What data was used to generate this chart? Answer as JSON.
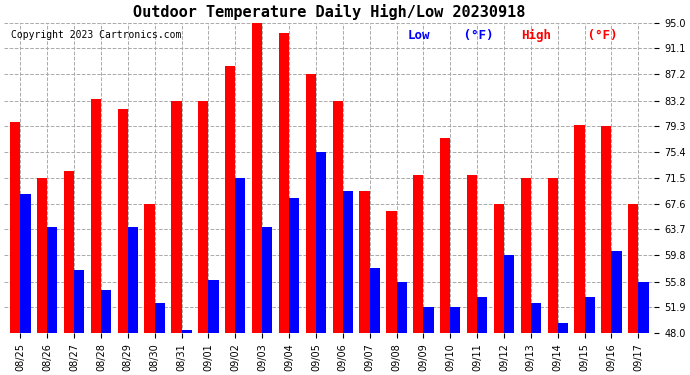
{
  "title": "Outdoor Temperature Daily High/Low 20230918",
  "copyright": "Copyright 2023 Cartronics.com",
  "yticks": [
    48.0,
    51.9,
    55.8,
    59.8,
    63.7,
    67.6,
    71.5,
    75.4,
    79.3,
    83.2,
    87.2,
    91.1,
    95.0
  ],
  "ylim": [
    48.0,
    95.0
  ],
  "bar_width": 0.38,
  "background_color": "#ffffff",
  "grid_color": "#aaaaaa",
  "low_color": "#0000ff",
  "high_color": "#ff0000",
  "dates": [
    "08/25",
    "08/26",
    "08/27",
    "08/28",
    "08/29",
    "08/30",
    "08/31",
    "09/01",
    "09/02",
    "09/03",
    "09/04",
    "09/05",
    "09/06",
    "09/07",
    "09/08",
    "09/09",
    "09/10",
    "09/11",
    "09/12",
    "09/13",
    "09/14",
    "09/15",
    "09/16",
    "09/17"
  ],
  "highs": [
    80.0,
    71.5,
    72.5,
    83.5,
    82.0,
    67.5,
    83.2,
    83.2,
    88.5,
    95.0,
    93.5,
    87.2,
    83.2,
    69.5,
    66.5,
    72.0,
    77.5,
    72.0,
    67.5,
    71.5,
    71.5,
    79.5,
    79.3,
    67.6
  ],
  "lows": [
    69.0,
    64.0,
    57.5,
    54.5,
    64.0,
    52.5,
    48.5,
    56.0,
    71.5,
    64.0,
    68.5,
    75.5,
    69.5,
    57.8,
    55.8,
    52.0,
    51.9,
    53.5,
    59.8,
    52.5,
    49.5,
    53.5,
    60.5,
    55.8
  ],
  "title_fontsize": 11,
  "tick_fontsize": 7,
  "copy_fontsize": 7,
  "legend_fontsize": 9
}
